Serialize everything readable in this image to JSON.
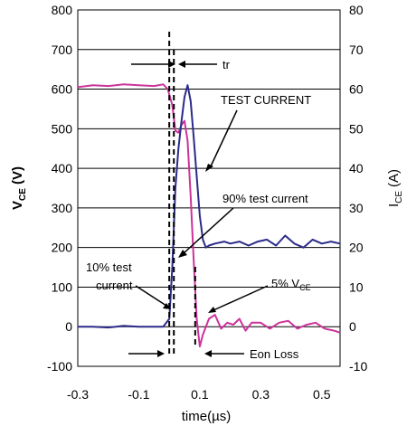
{
  "chart_data": {
    "type": "line",
    "xlabel": "time(µs)",
    "ylabel_left_main": "V",
    "ylabel_left_sub": "CE",
    "ylabel_left_unit": "(V)",
    "ylabel_right_main": "I",
    "ylabel_right_sub": "CE",
    "ylabel_right_unit": "(A)",
    "xlim": [
      -0.3,
      0.56
    ],
    "ylim_left": [
      -100,
      800
    ],
    "ylim_right": [
      -10,
      80
    ],
    "x_ticks": [
      -0.3,
      -0.1,
      0.1,
      0.3,
      0.5
    ],
    "x_tick_labels": [
      "-0.3",
      "-0.1",
      "0.1",
      "0.3",
      "0.5"
    ],
    "y_left_ticks": [
      -100,
      0,
      100,
      200,
      300,
      400,
      500,
      600,
      700,
      800
    ],
    "y_left_tick_labels": [
      "-100",
      "0",
      "100",
      "200",
      "300",
      "400",
      "500",
      "600",
      "700",
      "800"
    ],
    "y_right_ticks": [
      -10,
      0,
      10,
      20,
      30,
      40,
      50,
      60,
      70,
      80
    ],
    "y_right_tick_labels": [
      "-10",
      "0",
      "10",
      "20",
      "30",
      "40",
      "50",
      "60",
      "70",
      "80"
    ],
    "grid": "horizontal",
    "series": [
      {
        "color": "#cc3399",
        "axis": "left",
        "x": [
          -0.3,
          -0.25,
          -0.2,
          -0.15,
          -0.1,
          -0.05,
          -0.02,
          -0.005,
          0.01,
          0.02,
          0.03,
          0.04,
          0.05,
          0.06,
          0.07,
          0.08,
          0.09,
          0.1,
          0.11,
          0.13,
          0.15,
          0.17,
          0.19,
          0.21,
          0.23,
          0.25,
          0.27,
          0.3,
          0.33,
          0.36,
          0.39,
          0.42,
          0.45,
          0.48,
          0.51,
          0.54,
          0.56
        ],
        "values": [
          605,
          610,
          608,
          612,
          610,
          608,
          612,
          600,
          560,
          495,
          490,
          510,
          520,
          470,
          330,
          170,
          20,
          -50,
          -20,
          20,
          30,
          -5,
          10,
          5,
          20,
          -10,
          10,
          10,
          -5,
          10,
          15,
          -5,
          5,
          10,
          -5,
          -10,
          -15
        ]
      },
      {
        "color": "#2b2b8a",
        "axis": "right",
        "x": [
          -0.3,
          -0.25,
          -0.2,
          -0.15,
          -0.1,
          -0.05,
          -0.02,
          0.0,
          0.01,
          0.02,
          0.03,
          0.04,
          0.05,
          0.06,
          0.07,
          0.08,
          0.09,
          0.1,
          0.11,
          0.12,
          0.13,
          0.15,
          0.18,
          0.2,
          0.23,
          0.26,
          0.29,
          0.32,
          0.35,
          0.38,
          0.41,
          0.44,
          0.47,
          0.5,
          0.53,
          0.56
        ],
        "values": [
          0,
          0,
          -0.2,
          0.2,
          0,
          0,
          0,
          2,
          15,
          35,
          45,
          52,
          58,
          61,
          57,
          48,
          38,
          28,
          22,
          20,
          20.5,
          21,
          21.5,
          21,
          21.5,
          20.5,
          21.5,
          22,
          20.5,
          23,
          21,
          20,
          22,
          21,
          21.5,
          21
        ]
      }
    ],
    "annotations": {
      "tr": "tr",
      "test_current": "TEST CURRENT",
      "pct90": "90% test current",
      "pct10_line1": "10% test",
      "pct10_line2": "current",
      "pct5_main": "5% V",
      "pct5_sub": "CE",
      "eon": "Eon Loss"
    },
    "dashed_markers_x": [
      0.0,
      0.015,
      0.085
    ]
  }
}
